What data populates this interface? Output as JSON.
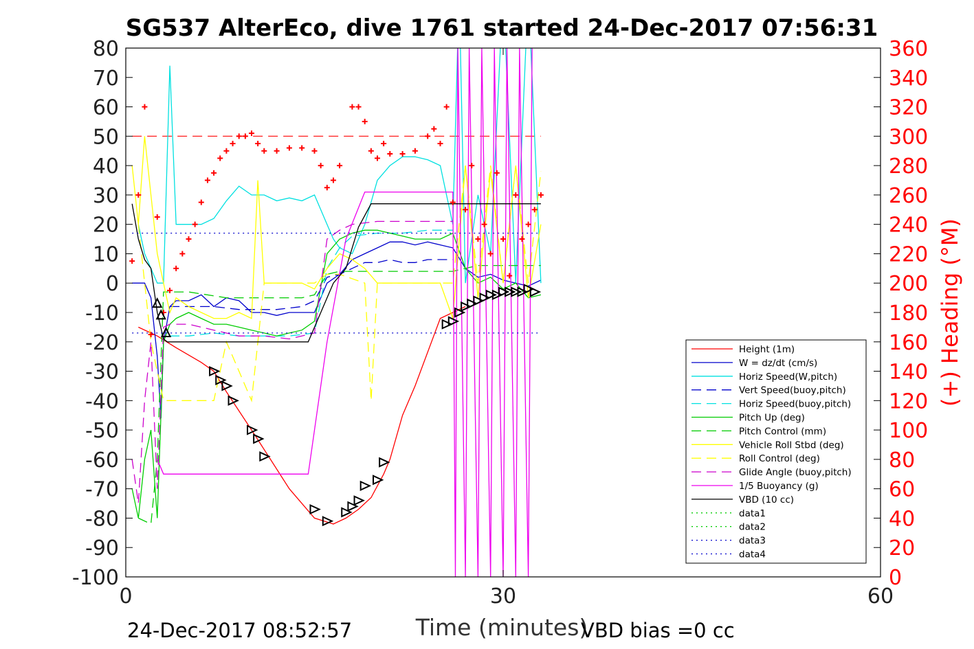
{
  "chart_data": {
    "type": "line",
    "title": "SG537 AlterEco, dive 1761 started 24-Dec-2017 07:56:31",
    "xlabel": "Time (minutes)",
    "ylabel_right": "(+) Heading (°M)",
    "footer_left": "24-Dec-2017 08:52:57",
    "footer_right": "VBD bias =0 cc",
    "xlim": [
      0,
      60
    ],
    "ylim": [
      -100,
      80
    ],
    "ylim_right": [
      0,
      360
    ],
    "x_ticks": [
      0,
      30,
      60
    ],
    "y_ticks": [
      80,
      70,
      60,
      50,
      40,
      30,
      20,
      10,
      0,
      -10,
      -20,
      -30,
      -40,
      -50,
      -60,
      -70,
      -80,
      -90,
      -100
    ],
    "y_ticks_right": [
      360,
      340,
      320,
      300,
      280,
      260,
      240,
      220,
      200,
      180,
      160,
      140,
      120,
      100,
      80,
      60,
      40,
      20,
      0
    ],
    "legend_position": "bottom-right",
    "colors": {
      "height": "#ff0000",
      "w": "#0000cc",
      "hspeed": "#00e0e0",
      "vspeed_buoy": "#0000cc",
      "hspeed_buoy": "#00e0e0",
      "pitch": "#00cc00",
      "pitch_control": "#00cc00",
      "roll": "#ffff00",
      "roll_control": "#ffff00",
      "glide": "#cc00cc",
      "buoyancy": "#ee00ee",
      "vbd": "#000000",
      "heading": "#ff0000",
      "right_axis": "#ff0000"
    },
    "series": [
      {
        "name": "Height (1m)",
        "color": "#ff0000",
        "dash": "solid",
        "x": [
          1.0,
          2.5,
          4.0,
          6.0,
          7.0,
          8.0,
          10.0,
          11.5,
          13.0,
          15.0,
          16.5,
          17.5,
          18.5,
          19.5,
          20.5,
          21.0,
          22.0,
          23.0,
          25.0,
          27.0
        ],
        "y": [
          -15,
          -18,
          -22,
          -27,
          -30,
          -37,
          -50,
          -60,
          -70,
          -80,
          -82,
          -80,
          -77,
          -73,
          -65,
          -60,
          -45,
          -35,
          -12,
          -8
        ]
      },
      {
        "name": "W = dz/dt (cm/s)",
        "color": "#0000cc",
        "dash": "solid",
        "x": [
          0.5,
          1.0,
          1.5,
          2.0,
          2.5,
          2.8,
          3.0,
          3.5,
          4.0,
          5.0,
          6.0,
          7.0,
          8.0,
          9.0,
          10.0,
          11.0,
          12.0,
          13.0,
          14.0,
          15.0,
          16.0,
          17.0,
          18.0,
          19.0,
          20.0,
          21.0,
          22.0,
          23.0,
          24.0,
          25.0,
          26.0,
          27.0,
          28.0,
          29.0,
          30.0,
          31.0,
          32.0,
          33.0
        ],
        "y": [
          0,
          0,
          0,
          -5,
          -25,
          -46,
          -20,
          -8,
          -6,
          -6,
          -4,
          -8,
          -5,
          -6,
          -10,
          -10,
          -11,
          -10,
          -10,
          -10,
          0,
          3,
          8,
          10,
          12,
          14,
          14,
          13,
          14,
          13,
          12,
          5,
          2,
          3,
          1,
          0,
          -1,
          1
        ]
      },
      {
        "name": "Horiz Speed(W,pitch)",
        "color": "#00e0e0",
        "dash": "solid",
        "x": [
          1.0,
          1.5,
          2.0,
          2.5,
          3.0,
          3.5,
          4.0,
          5.0,
          6.0,
          7.0,
          8.0,
          9.0,
          10.0,
          11.0,
          12.0,
          13.0,
          14.0,
          15.0,
          16.0,
          16.5,
          17.0,
          18.0,
          19.0,
          20.0,
          21.0,
          22.0,
          23.0,
          24.0,
          25.0,
          25.5,
          26.0,
          26.5,
          27.0,
          28.0,
          29.0,
          30.0,
          31.0,
          32.0,
          33.0
        ],
        "y": [
          20,
          10,
          5,
          0,
          0,
          74,
          20,
          20,
          20,
          22,
          28,
          33,
          30,
          30,
          28,
          29,
          28,
          30,
          20,
          15,
          12,
          10,
          20,
          35,
          40,
          43,
          43,
          42,
          40,
          30,
          20,
          100,
          0,
          30,
          10,
          100,
          0,
          100,
          0
        ]
      },
      {
        "name": "Vert Speed(buoy,pitch)",
        "color": "#0000cc",
        "dash": "dash",
        "x": [
          3.5,
          5.0,
          7.0,
          9.0,
          10.0,
          12.0,
          14.0,
          15.0,
          16.0,
          17.0,
          18.0,
          19.0,
          20.0,
          21.0,
          22.0,
          23.0,
          24.0,
          25.0,
          26.0
        ],
        "y": [
          -8,
          -8,
          -8,
          -9,
          -9,
          -9,
          -8,
          -6,
          2,
          3,
          5,
          7,
          7,
          8,
          7,
          7,
          8,
          8,
          8
        ]
      },
      {
        "name": "Horiz Speed(buoy,pitch)",
        "color": "#00e0e0",
        "dash": "dash",
        "x": [
          3.5,
          5.0,
          7.0,
          9.0,
          11.0,
          13.0,
          15.0,
          16.0,
          17.0,
          18.0,
          20.0,
          22.0,
          24.0,
          26.0
        ],
        "y": [
          -18,
          -18,
          -17,
          -18,
          -18,
          -18,
          -17,
          5,
          12,
          16,
          17,
          17,
          18,
          18
        ]
      },
      {
        "name": "Pitch Up (deg)",
        "color": "#00cc00",
        "dash": "solid",
        "x": [
          0.5,
          1.0,
          1.5,
          2.0,
          2.5,
          3.0,
          3.5,
          4.0,
          5.0,
          6.0,
          7.0,
          8.0,
          9.0,
          10.0,
          11.0,
          12.0,
          13.0,
          14.0,
          15.0,
          16.0,
          17.0,
          18.0,
          19.0,
          20.0,
          21.0,
          22.0,
          23.0,
          24.0,
          25.0,
          26.0,
          27.0,
          28.0,
          29.0,
          30.0,
          31.0,
          32.0,
          33.0
        ],
        "y": [
          -70,
          -80,
          -60,
          -50,
          -80,
          -20,
          -14,
          -12,
          -10,
          -12,
          -14,
          -14,
          -15,
          -16,
          -17,
          -18,
          -17,
          -16,
          -13,
          10,
          15,
          17,
          18,
          18,
          17,
          16,
          15,
          15,
          15,
          17,
          5,
          0,
          2,
          -2,
          0,
          -5,
          -4
        ]
      },
      {
        "name": "Pitch Control (mm)",
        "color": "#00cc00",
        "dash": "dash",
        "x": [
          1.0,
          2.0,
          2.5,
          3.0,
          5.0,
          8.0,
          11.0,
          14.0,
          15.0,
          16.0,
          17.0,
          18.0,
          20.0,
          22.0,
          24.0,
          26.0,
          27.0,
          28.0,
          30.0,
          32.0,
          33.0
        ],
        "y": [
          -80,
          -82,
          -60,
          -3,
          -3,
          -5,
          -5,
          -5,
          -4,
          3,
          4,
          4,
          4,
          4,
          4,
          4,
          5,
          6,
          6,
          6,
          6
        ]
      },
      {
        "name": "Vehicle Roll Stbd (deg)",
        "color": "#ffff00",
        "dash": "solid",
        "x": [
          0.5,
          1.0,
          1.5,
          2.0,
          2.5,
          3.0,
          3.5,
          4.0,
          5.0,
          6.0,
          7.0,
          8.0,
          9.0,
          10.0,
          10.5,
          11.0,
          11.5,
          12.0,
          13.0,
          14.0,
          15.0,
          16.0,
          17.0,
          18.0,
          19.0,
          20.0,
          21.0,
          22.0,
          23.0,
          24.0,
          25.0,
          26.0,
          27.0,
          28.0,
          29.0,
          30.0,
          31.0,
          32.0,
          33.0
        ],
        "y": [
          40,
          20,
          50,
          30,
          10,
          0,
          -10,
          -5,
          -8,
          -10,
          -12,
          -12,
          -10,
          -12,
          35,
          0,
          0,
          0,
          0,
          0,
          -2,
          5,
          10,
          8,
          5,
          0,
          0,
          0,
          0,
          0,
          0,
          -12,
          40,
          -5,
          38,
          0,
          40,
          -5,
          20
        ]
      },
      {
        "name": "Roll Control (deg)",
        "color": "#ffff00",
        "dash": "dash",
        "x": [
          1.0,
          2.0,
          3.0,
          4.0,
          6.0,
          7.0,
          8.0,
          10.0,
          11.0,
          12.0,
          14.0,
          15.0,
          16.0,
          17.0,
          19.0,
          19.5,
          20.0,
          21.0,
          23.0,
          25.0,
          26.0,
          27.0,
          28.0,
          29.0,
          30.0,
          31.0,
          32.0,
          33.0
        ],
        "y": [
          20,
          -20,
          -40,
          -40,
          -40,
          -40,
          -20,
          -40,
          0,
          0,
          0,
          0,
          3,
          3,
          0,
          -40,
          0,
          0,
          0,
          0,
          0,
          40,
          0,
          40,
          0,
          40,
          0,
          38
        ]
      },
      {
        "name": "Glide Angle (buoy,pitch)",
        "color": "#cc00cc",
        "dash": "dash",
        "x": [
          0.5,
          1.0,
          1.5,
          2.0,
          2.5,
          3.0,
          3.5,
          5.0,
          7.0,
          9.0,
          11.0,
          13.0,
          15.0,
          16.0,
          17.0,
          18.0,
          20.0,
          22.0,
          24.0,
          26.0
        ],
        "y": [
          -60,
          -75,
          -40,
          -20,
          -70,
          -15,
          -14,
          -14,
          -16,
          -18,
          -18,
          -19,
          -17,
          15,
          18,
          20,
          21,
          21,
          21,
          21
        ]
      },
      {
        "name": "1/5 Buoyancy (g)",
        "color": "#ee00ee",
        "dash": "solid",
        "x": [
          2.5,
          3.0,
          3.5,
          6.0,
          9.0,
          12.0,
          14.5,
          16.0,
          17.5,
          19.0,
          21.0,
          23.0,
          25.0,
          26.0,
          26.2,
          26.4,
          27.0,
          27.3,
          28.0,
          28.3,
          29.0,
          29.3,
          30.0,
          30.3,
          31.0,
          31.3,
          32.0,
          32.3
        ],
        "y": [
          -60,
          -65,
          -65,
          -65,
          -65,
          -65,
          -65,
          -20,
          15,
          31,
          31,
          31,
          31,
          31,
          -100,
          80,
          -100,
          80,
          -100,
          80,
          -100,
          80,
          -100,
          80,
          -100,
          80,
          -100,
          80
        ]
      },
      {
        "name": "VBD (10 cc)",
        "color": "#000000",
        "dash": "solid",
        "x": [
          0.5,
          1.0,
          1.5,
          2.0,
          2.5,
          3.0,
          3.3,
          14.5,
          15.5,
          16.5,
          17.5,
          18.5,
          19.5,
          26.0,
          33.0
        ],
        "y": [
          27,
          15,
          8,
          5,
          -10,
          -19,
          -20,
          -20,
          -10,
          0,
          5,
          19,
          27,
          27,
          27
        ]
      },
      {
        "name": "data1",
        "color": "#00cc00",
        "dash": "dot",
        "x": [],
        "y": []
      },
      {
        "name": "data2",
        "color": "#00cc00",
        "dash": "dot",
        "x": [],
        "y": []
      },
      {
        "name": "data3",
        "color": "#0000cc",
        "dash": "dot",
        "x": [
          0.5,
          33.0
        ],
        "y": [
          17,
          17
        ]
      },
      {
        "name": "data4",
        "color": "#0000cc",
        "dash": "dot",
        "x": [
          0.5,
          33.0
        ],
        "y": [
          -17,
          -17
        ]
      }
    ],
    "heading_points": {
      "x": [
        0.5,
        1.0,
        1.5,
        2.0,
        2.5,
        3.0,
        3.5,
        4.0,
        4.5,
        5.0,
        5.5,
        6.0,
        6.5,
        7.0,
        7.5,
        8.0,
        8.5,
        9.0,
        9.5,
        10.0,
        10.5,
        11.0,
        12.0,
        13.0,
        14.0,
        15.0,
        15.5,
        16.0,
        16.5,
        17.0,
        18.0,
        18.5,
        19.0,
        19.5,
        20.0,
        20.5,
        21.0,
        22.0,
        23.0,
        24.0,
        24.5,
        25.0,
        25.5,
        26.0,
        27.0,
        27.5,
        28.0,
        28.5,
        29.0,
        29.5,
        30.0,
        30.5,
        31.0,
        31.5,
        32.0,
        32.5,
        33.0
      ],
      "y": [
        215,
        260,
        320,
        165,
        245,
        180,
        195,
        210,
        220,
        230,
        240,
        255,
        270,
        275,
        285,
        290,
        295,
        300,
        300,
        302,
        295,
        290,
        290,
        292,
        292,
        290,
        280,
        265,
        270,
        280,
        320,
        320,
        310,
        290,
        285,
        295,
        288,
        288,
        290,
        300,
        305,
        295,
        320,
        255,
        250,
        280,
        230,
        240,
        220,
        275,
        230,
        205,
        260,
        230,
        240,
        250,
        260
      ]
    },
    "vbd_markers": {
      "x": [
        2.5,
        2.8,
        3.2,
        7.0,
        7.5,
        8.0,
        8.5,
        10.0,
        10.5,
        11.0,
        15.0,
        16.0,
        17.5,
        18.0,
        18.5,
        19.0,
        20.0,
        20.5,
        25.5,
        26.0,
        26.5,
        27.0,
        27.5,
        28.0,
        28.5,
        29.0,
        29.5,
        30.0,
        30.5,
        31.0,
        31.5,
        32.0,
        32.5
      ],
      "y": [
        -7,
        -11,
        -17,
        -30,
        -33,
        -35,
        -40,
        -50,
        -53,
        -59,
        -77,
        -81,
        -78,
        -76,
        -74,
        -69,
        -67,
        -61,
        -14,
        -13,
        -10,
        -8,
        -7,
        -6,
        -5,
        -4,
        -4,
        -3,
        -3,
        -3,
        -3,
        -2,
        -3
      ]
    },
    "ref_line_heading": 300
  }
}
